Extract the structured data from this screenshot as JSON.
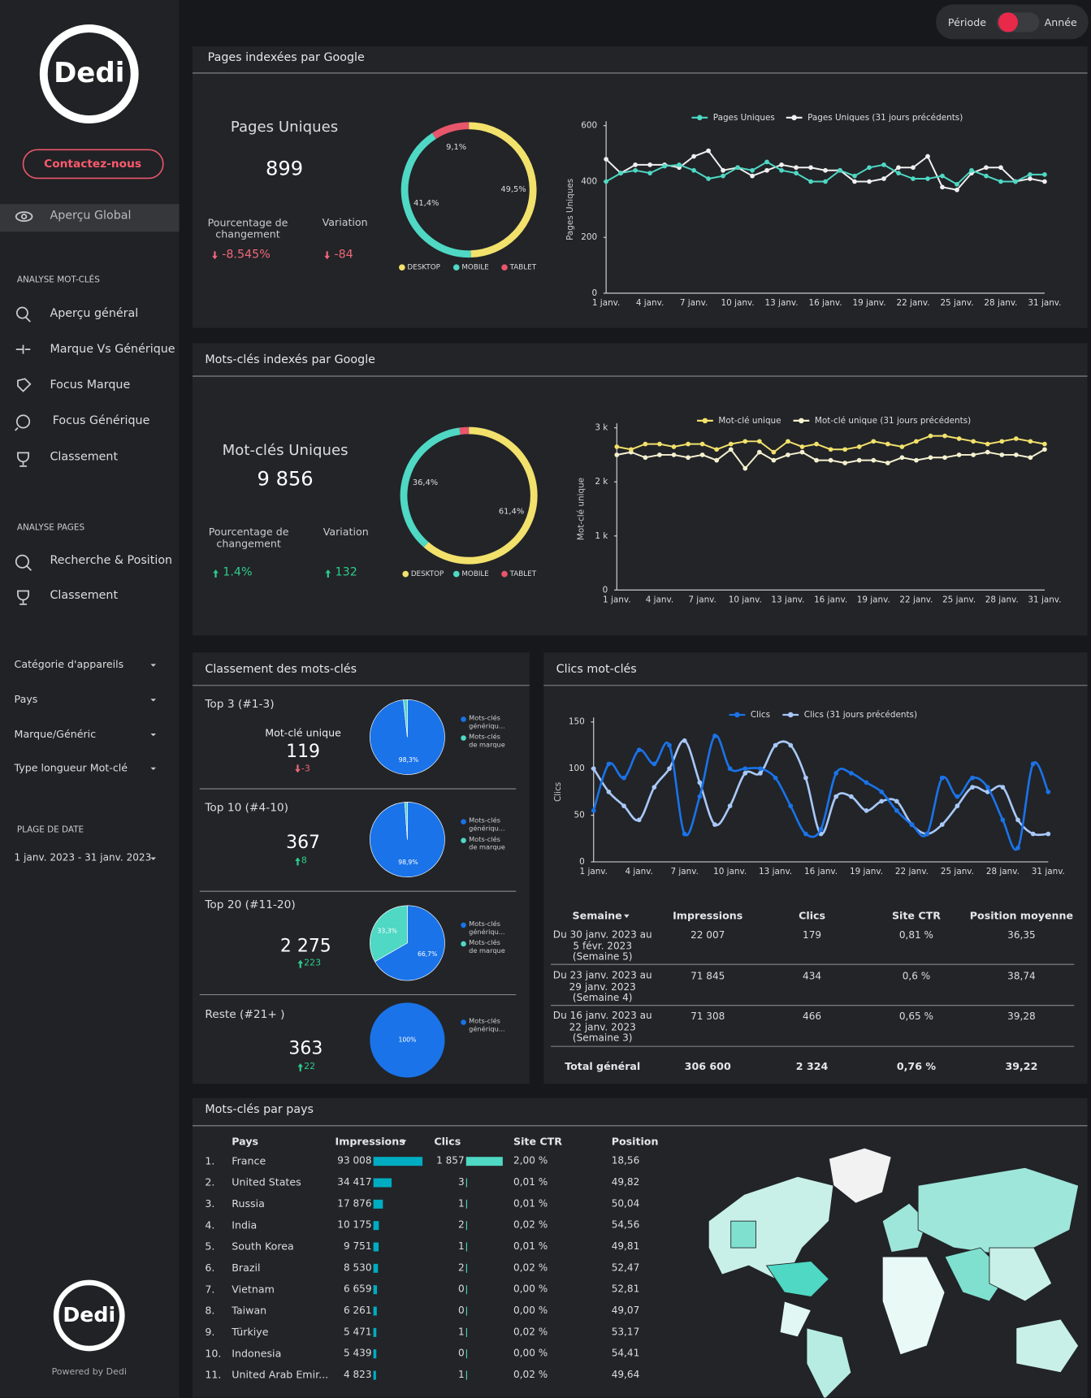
{
  "header": {
    "period": "Période",
    "year": "Année"
  },
  "sidebar": {
    "logo": "Dedi",
    "contact": "Contactez-nous",
    "overview": "Aperçu Global",
    "sections": [
      {
        "heading": "ANALYSE MOT-CLÉS",
        "items": [
          "Aperçu général",
          "Marque Vs Générique",
          "Focus Marque",
          "Focus Générique",
          "Classement"
        ]
      },
      {
        "heading": "ANALYSE PAGES",
        "items": [
          "Recherche & Position",
          "Classement"
        ]
      }
    ],
    "filters": [
      "Catégorie d'appareils",
      "Pays",
      "Marque/Généric",
      "Type longueur Mot-clé"
    ],
    "date_heading": "PLAGE DE DATE",
    "date_range": "1 janv. 2023 - 31 janv. 2023",
    "footer_logo": "Dedi",
    "powered": "Powered by Dedi"
  },
  "panels": {
    "pages": {
      "title": "Pages indexées par Google",
      "kpi_title": "Pages Uniques",
      "kpi_value": "899",
      "change_label": "Pourcentage de changement",
      "change": "-8.545%",
      "variation_label": "Variation",
      "variation": "-84"
    },
    "keywords": {
      "title": "Mots-clés indexés par Google",
      "kpi_title": "Mot-clés Uniques",
      "kpi_value": "9 856",
      "change_label": "Pourcentage de changement",
      "change": "1.4%",
      "variation_label": "Variation",
      "variation": "132"
    },
    "ranking": {
      "title": "Classement des mots-clés",
      "boxes": [
        {
          "title": "Top 3  (#1-3)",
          "metric": "Mot-clé unique",
          "value": "119",
          "delta": "-3"
        },
        {
          "title": "Top 10 (#4-10)",
          "value": "367",
          "delta": "8"
        },
        {
          "title": "Top 20  (#11-20)",
          "value": "2 275",
          "delta": "223"
        },
        {
          "title": "Reste  (#21+ )",
          "value": "363",
          "delta": "22"
        }
      ]
    },
    "clicks": {
      "title": "Clics  mot-clés"
    },
    "countries": {
      "title": "Mots-clés par pays"
    }
  },
  "chart_data": [
    {
      "type": "line",
      "y_label": "Pages Uniques",
      "categories": [
        "1 janv.",
        null,
        null,
        "4 janv.",
        null,
        null,
        "7 janv.",
        null,
        null,
        "10 janv.",
        null,
        null,
        "13 janv.",
        null,
        null,
        "16 janv.",
        null,
        null,
        "19 janv.",
        null,
        null,
        "22 janv.",
        null,
        null,
        "25 janv.",
        null,
        null,
        "28 janv.",
        null,
        null,
        "31 janv."
      ],
      "series": [
        {
          "name": "Pages Uniques",
          "color": "#4fd8c4",
          "values": [
            400,
            430,
            440,
            430,
            455,
            460,
            440,
            410,
            420,
            450,
            440,
            470,
            440,
            430,
            400,
            400,
            440,
            420,
            450,
            460,
            430,
            410,
            410,
            420,
            390,
            440,
            420,
            400,
            400,
            425,
            425
          ]
        },
        {
          "name": "Pages Uniques (31 jours précédents)",
          "color": "#f0f0f0",
          "values": [
            480,
            430,
            460,
            460,
            460,
            450,
            490,
            510,
            440,
            450,
            420,
            440,
            460,
            450,
            450,
            440,
            440,
            400,
            400,
            410,
            450,
            450,
            490,
            380,
            370,
            430,
            450,
            450,
            400,
            410,
            400
          ]
        }
      ],
      "ylim": [
        0,
        600
      ],
      "yticks": [
        0,
        200,
        400,
        600
      ]
    },
    {
      "type": "donut",
      "categories": [
        "DESKTOP",
        "MOBILE",
        "TABLET"
      ],
      "colors": [
        "#f2e16b",
        "#4fd8c4",
        "#e8566c"
      ],
      "values": [
        49.5,
        41.4,
        9.1
      ],
      "value_labels": [
        "49,5%",
        "41,4%",
        "9,1%"
      ]
    },
    {
      "type": "line",
      "y_label": "Mot-clé unique",
      "categories": [
        "1 janv.",
        null,
        null,
        "4 janv.",
        null,
        null,
        "7 janv.",
        null,
        null,
        "10 janv.",
        null,
        null,
        "13 janv.",
        null,
        null,
        "16 janv.",
        null,
        null,
        "19 janv.",
        null,
        null,
        "22 janv.",
        null,
        null,
        "25 janv.",
        null,
        null,
        "28 janv.",
        null,
        null,
        "31 janv."
      ],
      "series": [
        {
          "name": "Mot-clé unique",
          "color": "#f2e16b",
          "values": [
            2650,
            2600,
            2700,
            2700,
            2650,
            2700,
            2700,
            2600,
            2700,
            2750,
            2750,
            2550,
            2750,
            2650,
            2700,
            2600,
            2600,
            2650,
            2750,
            2700,
            2650,
            2750,
            2850,
            2850,
            2800,
            2750,
            2700,
            2750,
            2800,
            2750,
            2700
          ]
        },
        {
          "name": "Mot-clé unique (31 jours précédents)",
          "color": "#f5f1d0",
          "values": [
            2500,
            2550,
            2450,
            2500,
            2500,
            2450,
            2500,
            2400,
            2600,
            2250,
            2550,
            2400,
            2500,
            2550,
            2400,
            2400,
            2350,
            2400,
            2400,
            2350,
            2450,
            2400,
            2450,
            2450,
            2500,
            2500,
            2550,
            2500,
            2500,
            2450,
            2600
          ]
        }
      ],
      "ylim": [
        0,
        3000
      ],
      "yticks": [
        0,
        {
          "value": 1000,
          "label": "1 k"
        },
        {
          "value": 2000,
          "label": "2 k"
        },
        {
          "value": 3000,
          "label": "3 k"
        }
      ]
    },
    {
      "type": "donut",
      "categories": [
        "DESKTOP",
        "MOBILE",
        "TABLET"
      ],
      "colors": [
        "#f2e16b",
        "#4fd8c4",
        "#e8566c"
      ],
      "values": [
        61.4,
        36.4,
        2.2
      ],
      "value_labels": [
        "61,4%",
        "36,4%",
        null
      ]
    },
    {
      "type": "pie",
      "categories": [
        "Mots-clés génériqu...",
        "Mots-clés de marque"
      ],
      "colors": [
        "#1a73e8",
        "#4fd8c4"
      ],
      "values": [
        98.3,
        1.7
      ],
      "value_labels": [
        "98,3%",
        null
      ]
    },
    {
      "type": "pie",
      "categories": [
        "Mots-clés génériqu...",
        "Mots-clés de marque"
      ],
      "colors": [
        "#1a73e8",
        "#4fd8c4"
      ],
      "values": [
        98.9,
        1.1
      ],
      "value_labels": [
        "98,9%",
        null
      ]
    },
    {
      "type": "pie",
      "categories": [
        "Mots-clés génériqu...",
        "Mots-clés de marque"
      ],
      "colors": [
        "#1a73e8",
        "#4fd8c4"
      ],
      "values": [
        66.7,
        33.3
      ],
      "value_labels": [
        "66,7%",
        "33,3%"
      ]
    },
    {
      "type": "pie",
      "categories": [
        "Mots-clés génériqu..."
      ],
      "colors": [
        "#1a73e8"
      ],
      "values": [
        100
      ],
      "value_labels": [
        "100%"
      ]
    },
    {
      "type": "line",
      "y_label": "Clics",
      "smooth": true,
      "categories": [
        "1 janv.",
        null,
        null,
        "4 janv.",
        null,
        null,
        "7 janv.",
        null,
        null,
        "10 janv.",
        null,
        null,
        "13 janv.",
        null,
        null,
        "16 janv.",
        null,
        null,
        "19 janv.",
        null,
        null,
        "22 janv.",
        null,
        null,
        "25 janv.",
        null,
        null,
        "28 janv.",
        null,
        null,
        "31 janv."
      ],
      "series": [
        {
          "name": "Clics",
          "color": "#1a73e8",
          "values": [
            55,
            105,
            90,
            120,
            105,
            125,
            30,
            70,
            135,
            100,
            100,
            100,
            90,
            60,
            30,
            35,
            95,
            95,
            85,
            75,
            55,
            40,
            30,
            90,
            70,
            90,
            80,
            45,
            15,
            105,
            75
          ]
        },
        {
          "name": "Clics (31 jours précédents)",
          "color": "#a8c8f8",
          "values": [
            100,
            75,
            60,
            45,
            80,
            100,
            130,
            85,
            40,
            60,
            95,
            95,
            125,
            125,
            90,
            30,
            70,
            70,
            55,
            65,
            65,
            40,
            30,
            40,
            60,
            80,
            75,
            80,
            45,
            30,
            30
          ]
        }
      ],
      "ylim": [
        0,
        150
      ],
      "yticks": [
        0,
        50,
        100,
        150
      ]
    }
  ],
  "clicks_table": {
    "columns": [
      "Semaine",
      "Impressions",
      "Clics",
      "Site CTR",
      "Position moyenne"
    ],
    "rows": [
      [
        "Du 30 janv. 2023 au 5 févr. 2023 (Semaine 5)",
        "22 007",
        "179",
        "0,81 %",
        "36,35"
      ],
      [
        "Du 23 janv. 2023 au 29 janv. 2023 (Semaine 4)",
        "71 845",
        "434",
        "0,6 %",
        "38,74"
      ],
      [
        "Du 16 janv. 2023 au 22 janv. 2023 (Semaine 3)",
        "71 308",
        "466",
        "0,65 %",
        "39,28"
      ]
    ],
    "total": [
      "Total général",
      "306 600",
      "2 324",
      "0,76 %",
      "39,22"
    ]
  },
  "country_table": {
    "columns": [
      "Pays",
      "Impressions",
      "Clics",
      "Site CTR",
      "Position"
    ],
    "rows": [
      {
        "rank": "1.",
        "country": "France",
        "impressions": 93008,
        "impressions_label": "93 008",
        "clicks": 1857,
        "clicks_label": "1 857",
        "ctr": "2,00 %",
        "position": "18,56"
      },
      {
        "rank": "2.",
        "country": "United States",
        "impressions": 34417,
        "impressions_label": "34 417",
        "clicks": 3,
        "clicks_label": "3",
        "ctr": "0,01 %",
        "position": "49,82"
      },
      {
        "rank": "3.",
        "country": "Russia",
        "impressions": 17876,
        "impressions_label": "17 876",
        "clicks": 1,
        "clicks_label": "1",
        "ctr": "0,01 %",
        "position": "50,04"
      },
      {
        "rank": "4.",
        "country": "India",
        "impressions": 10175,
        "impressions_label": "10 175",
        "clicks": 2,
        "clicks_label": "2",
        "ctr": "0,02 %",
        "position": "54,56"
      },
      {
        "rank": "5.",
        "country": "South Korea",
        "impressions": 9751,
        "impressions_label": "9 751",
        "clicks": 1,
        "clicks_label": "1",
        "ctr": "0,01 %",
        "position": "49,81"
      },
      {
        "rank": "6.",
        "country": "Brazil",
        "impressions": 8530,
        "impressions_label": "8 530",
        "clicks": 2,
        "clicks_label": "2",
        "ctr": "0,02 %",
        "position": "52,47"
      },
      {
        "rank": "7.",
        "country": "Vietnam",
        "impressions": 6659,
        "impressions_label": "6 659",
        "clicks": 0,
        "clicks_label": "0",
        "ctr": "0,00 %",
        "position": "52,81"
      },
      {
        "rank": "8.",
        "country": "Taiwan",
        "impressions": 6261,
        "impressions_label": "6 261",
        "clicks": 0,
        "clicks_label": "0",
        "ctr": "0,00 %",
        "position": "49,07"
      },
      {
        "rank": "9.",
        "country": "Türkiye",
        "impressions": 5471,
        "impressions_label": "5 471",
        "clicks": 1,
        "clicks_label": "1",
        "ctr": "0,02 %",
        "position": "53,17"
      },
      {
        "rank": "10.",
        "country": "Indonesia",
        "impressions": 5439,
        "impressions_label": "5 439",
        "clicks": 0,
        "clicks_label": "0",
        "ctr": "0,00 %",
        "position": "54,41"
      },
      {
        "rank": "11.",
        "country": "United Arab Emir...",
        "impressions": 4823,
        "impressions_label": "4 823",
        "clicks": 1,
        "clicks_label": "1",
        "ctr": "0,02 %",
        "position": "49,64"
      }
    ]
  }
}
